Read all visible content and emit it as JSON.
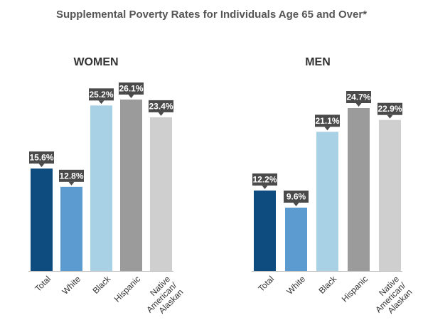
{
  "title": "Supplemental Poverty Rates for Individuals Age 65 and Over*",
  "chart_data": [
    {
      "type": "bar",
      "title": "WOMEN",
      "categories": [
        "Total",
        "White",
        "Black",
        "Hispanic",
        "Native American/ Alaskan"
      ],
      "category_lines": [
        [
          "Total"
        ],
        [
          "White"
        ],
        [
          "Black"
        ],
        [
          "Hispanic"
        ],
        [
          "Native",
          "American/",
          "Alaskan"
        ]
      ],
      "values": [
        15.6,
        12.8,
        25.2,
        26.1,
        23.4
      ],
      "value_labels": [
        "15.6%",
        "12.8%",
        "25.2%",
        "26.1%",
        "23.4%"
      ],
      "colors": [
        "#0e4c80",
        "#5b9bd0",
        "#a9d1e6",
        "#9b9b9b",
        "#cfcfcf"
      ],
      "ylim": [
        0,
        26.1
      ],
      "grid": false,
      "legend": "none"
    },
    {
      "type": "bar",
      "title": "MEN",
      "categories": [
        "Total",
        "White",
        "Black",
        "Hispanic",
        "Native American/ Alaskan"
      ],
      "category_lines": [
        [
          "Total"
        ],
        [
          "White"
        ],
        [
          "Black"
        ],
        [
          "Hispanic"
        ],
        [
          "Native",
          "American/",
          "Alaskan"
        ]
      ],
      "values": [
        12.2,
        9.6,
        21.1,
        24.7,
        22.9
      ],
      "value_labels": [
        "12.2%",
        "9.6%",
        "21.1%",
        "24.7%",
        "22.9%"
      ],
      "colors": [
        "#0e4c80",
        "#5b9bd0",
        "#a9d1e6",
        "#9b9b9b",
        "#cfcfcf"
      ],
      "ylim": [
        0,
        24.7
      ],
      "grid": false,
      "legend": "none"
    }
  ],
  "label_box_color": "#4a4a4a",
  "axis_color": "#b8b8b8"
}
